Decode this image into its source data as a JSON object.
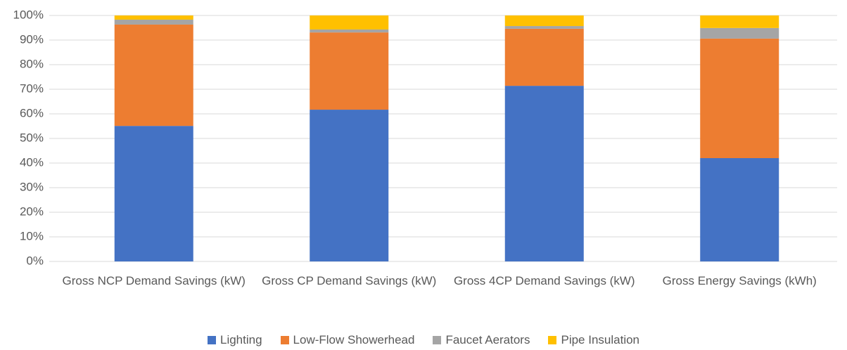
{
  "chart_data": {
    "type": "stacked_bar",
    "categories": [
      "Gross NCP Demand Savings (kW)",
      "Gross CP Demand Savings (kW)",
      "Gross 4CP Demand Savings (kW)",
      "Gross Energy Savings (kWh)"
    ],
    "series": [
      {
        "name": "Lighting",
        "color": "#4472c4",
        "values": [
          55.1,
          61.7,
          71.4,
          42.0
        ]
      },
      {
        "name": "Low-Flow Showerhead",
        "color": "#ed7d31",
        "values": [
          41.2,
          31.4,
          23.2,
          48.6
        ]
      },
      {
        "name": "Faucet Aerators",
        "color": "#a5a5a5",
        "values": [
          2.0,
          1.2,
          1.1,
          4.3
        ]
      },
      {
        "name": "Pipe Insulation",
        "color": "#ffc000",
        "values": [
          1.7,
          5.7,
          4.3,
          5.1
        ]
      }
    ],
    "ylim": [
      0,
      100
    ],
    "yticks": [
      {
        "value": 0,
        "label": "0%"
      },
      {
        "value": 10,
        "label": "10%"
      },
      {
        "value": 20,
        "label": "20%"
      },
      {
        "value": 30,
        "label": "30%"
      },
      {
        "value": 40,
        "label": "40%"
      },
      {
        "value": 50,
        "label": "50%"
      },
      {
        "value": 60,
        "label": "60%"
      },
      {
        "value": 70,
        "label": "70%"
      },
      {
        "value": 80,
        "label": "80%"
      },
      {
        "value": 90,
        "label": "90%"
      },
      {
        "value": 100,
        "label": "100%"
      }
    ],
    "grid": true,
    "legend": "bottom"
  }
}
